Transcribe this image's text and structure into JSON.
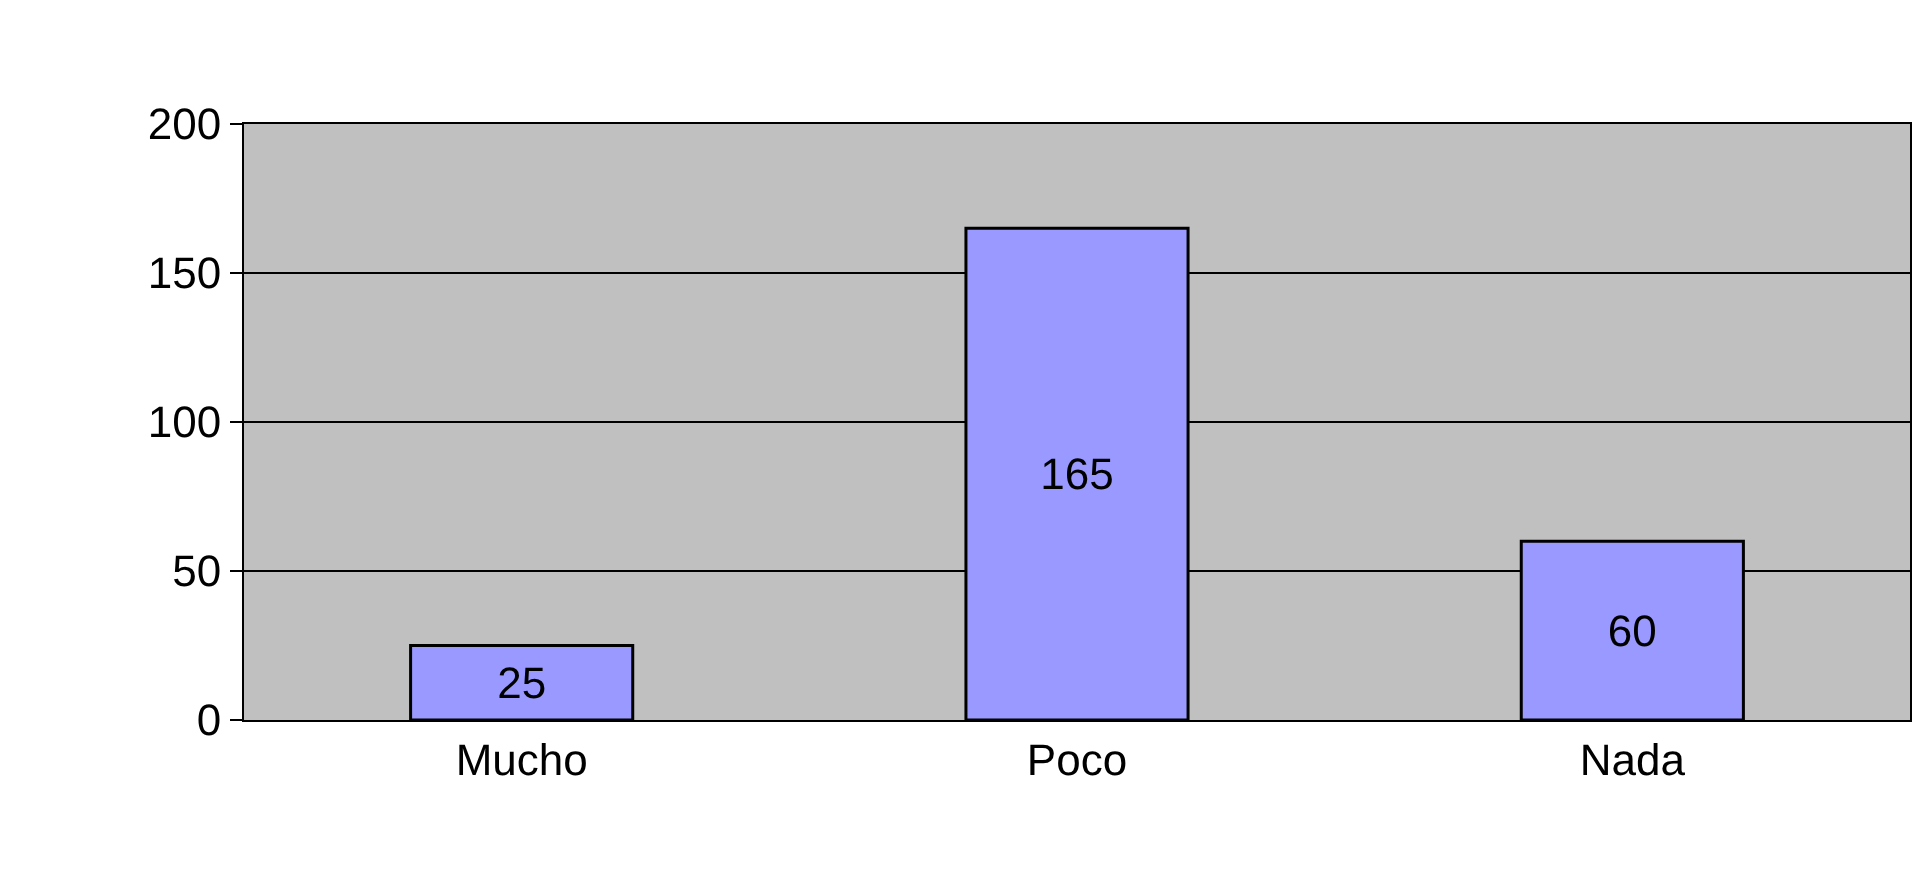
{
  "chart_data": {
    "type": "bar",
    "categories": [
      "Mucho",
      "Poco",
      "Nada"
    ],
    "values": [
      25,
      165,
      60
    ],
    "color": "#9999ff",
    "ylim": [
      0,
      200
    ],
    "yticks": [
      0,
      50,
      100,
      150,
      200
    ],
    "grid": "y",
    "data_labels": true
  }
}
